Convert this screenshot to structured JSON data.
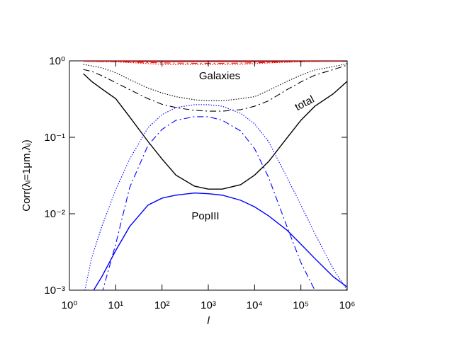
{
  "chart_data": {
    "type": "line",
    "xlabel": "l",
    "ylabel": "Corr(λᵢ=1μm,λⱼ)",
    "x": [
      2,
      3,
      5,
      10,
      20,
      50,
      100,
      200,
      500,
      1000,
      2000,
      5000,
      10000,
      20000,
      50000,
      100000,
      200000,
      500000,
      1000000
    ],
    "series": [
      {
        "color": "#000000",
        "style": "solid",
        "values": [
          0.68,
          0.54,
          0.43,
          0.32,
          0.185,
          0.088,
          0.052,
          0.032,
          0.023,
          0.021,
          0.021,
          0.024,
          0.032,
          0.048,
          0.098,
          0.167,
          0.255,
          0.37,
          0.54
        ]
      },
      {
        "color": "#000000",
        "style": "dotted",
        "values": [
          0.9,
          0.86,
          0.81,
          0.7,
          0.57,
          0.44,
          0.38,
          0.34,
          0.31,
          0.3,
          0.3,
          0.32,
          0.34,
          0.41,
          0.54,
          0.65,
          0.76,
          0.84,
          0.92
        ]
      },
      {
        "color": "#000000",
        "style": "dashdot",
        "values": [
          0.77,
          0.73,
          0.64,
          0.52,
          0.42,
          0.32,
          0.27,
          0.245,
          0.225,
          0.22,
          0.22,
          0.23,
          0.255,
          0.3,
          0.42,
          0.53,
          0.65,
          0.77,
          0.88
        ]
      },
      {
        "color": "#0000ff",
        "style": "solid",
        "values": [
          null,
          0.0009,
          0.0015,
          0.0033,
          0.0068,
          0.013,
          0.016,
          0.0175,
          0.0187,
          0.0183,
          0.0175,
          0.015,
          0.0123,
          0.0094,
          0.0061,
          0.004,
          0.0026,
          0.0015,
          0.0011
        ]
      },
      {
        "color": "#0000ff",
        "style": "dotted",
        "values": [
          0.0008,
          0.0026,
          0.0068,
          0.0206,
          0.052,
          0.134,
          0.198,
          0.245,
          0.267,
          0.267,
          0.255,
          0.206,
          0.15,
          0.088,
          0.03,
          0.013,
          0.0055,
          0.0019,
          0.001
        ]
      },
      {
        "color": "#0000ff",
        "style": "dashdot",
        "values": [
          null,
          null,
          0.0009,
          0.004,
          0.022,
          0.079,
          0.127,
          0.167,
          0.186,
          0.186,
          0.167,
          0.121,
          0.071,
          0.03,
          0.0068,
          0.0023,
          0.001,
          null,
          null
        ]
      },
      {
        "color": "#ff0000",
        "style": "solid",
        "values": [
          0.99,
          0.99,
          0.99,
          0.99,
          0.985,
          0.98,
          0.98,
          0.98,
          0.98,
          0.98,
          0.98,
          0.98,
          0.98,
          0.98,
          0.985,
          0.99,
          0.99,
          0.99,
          0.99
        ]
      },
      {
        "color": "#ff0000",
        "style": "dotted",
        "values": [
          0.99,
          0.98,
          0.975,
          0.97,
          0.95,
          0.92,
          0.9,
          0.89,
          0.89,
          0.89,
          0.89,
          0.9,
          0.92,
          0.94,
          0.96,
          0.97,
          0.98,
          0.985,
          0.99
        ]
      },
      {
        "color": "#ff0000",
        "style": "dashdot",
        "values": [
          0.99,
          0.985,
          0.98,
          0.975,
          0.965,
          0.95,
          0.94,
          0.935,
          0.93,
          0.93,
          0.93,
          0.935,
          0.945,
          0.955,
          0.97,
          0.98,
          0.985,
          0.99,
          0.99
        ]
      }
    ],
    "xlog": true,
    "ylog": true,
    "xlim": [
      1,
      1000000
    ],
    "ylim": [
      0.001,
      1
    ],
    "xticks": [
      {
        "value": 1,
        "label": "10⁰"
      },
      {
        "value": 10,
        "label": "10¹"
      },
      {
        "value": 100,
        "label": "10²"
      },
      {
        "value": 1000,
        "label": "10³"
      },
      {
        "value": 10000,
        "label": "10⁴"
      },
      {
        "value": 100000,
        "label": "10⁵"
      },
      {
        "value": 1000000,
        "label": "10⁶"
      }
    ],
    "yticks": [
      {
        "value": 0.001,
        "label": "10⁻³"
      },
      {
        "value": 0.01,
        "label": "10⁻²"
      },
      {
        "value": 0.1,
        "label": "10⁻¹"
      },
      {
        "value": 1,
        "label": "10⁰"
      }
    ],
    "annotations": [
      "Galaxies",
      "total",
      "PopIII"
    ]
  }
}
